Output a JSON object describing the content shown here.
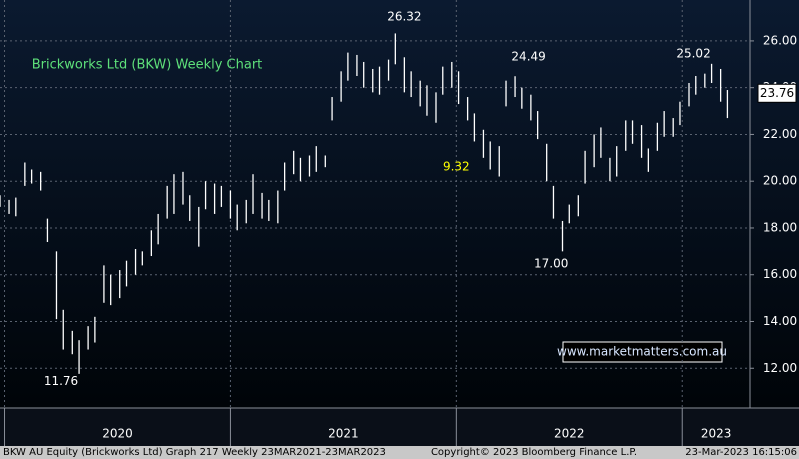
{
  "chart_data": {
    "type": "range_bar",
    "title": "Brickworks Ltd (BKW) Weekly Chart",
    "color": "#ffffff",
    "x": [
      2019.98,
      2020.02,
      2020.05,
      2020.09,
      2020.12,
      2020.16,
      2020.19,
      2020.23,
      2020.26,
      2020.3,
      2020.33,
      2020.37,
      2020.4,
      2020.44,
      2020.47,
      2020.51,
      2020.54,
      2020.58,
      2020.61,
      2020.65,
      2020.68,
      2020.72,
      2020.75,
      2020.79,
      2020.82,
      2020.86,
      2020.89,
      2020.93,
      2020.96,
      2021.0,
      2021.03,
      2021.07,
      2021.1,
      2021.14,
      2021.17,
      2021.21,
      2021.24,
      2021.28,
      2021.31,
      2021.35,
      2021.38,
      2021.42,
      2021.45,
      2021.49,
      2021.52,
      2021.56,
      2021.59,
      2021.63,
      2021.66,
      2021.7,
      2021.73,
      2021.77,
      2021.8,
      2021.84,
      2021.87,
      2021.91,
      2021.94,
      2021.98,
      2022.01,
      2022.05,
      2022.08,
      2022.12,
      2022.15,
      2022.19,
      2022.22,
      2022.26,
      2022.29,
      2022.33,
      2022.36,
      2022.4,
      2022.43,
      2022.47,
      2022.5,
      2022.54,
      2022.57,
      2022.61,
      2022.64,
      2022.68,
      2022.71,
      2022.75,
      2022.78,
      2022.82,
      2022.85,
      2022.89,
      2022.92,
      2022.96,
      2022.99,
      2023.03,
      2023.06,
      2023.1,
      2023.13,
      2023.17,
      2023.2
    ],
    "low": [
      18.9,
      18.6,
      18.5,
      19.8,
      19.9,
      19.6,
      17.4,
      14.1,
      12.8,
      12.6,
      11.76,
      12.8,
      13.1,
      14.8,
      14.7,
      15.0,
      15.5,
      16.0,
      16.4,
      16.8,
      17.3,
      18.4,
      18.6,
      19.0,
      18.3,
      17.2,
      18.8,
      18.6,
      18.9,
      18.4,
      17.9,
      18.2,
      18.6,
      18.4,
      18.3,
      18.2,
      19.6,
      20.3,
      20.0,
      20.2,
      20.4,
      20.6,
      22.6,
      23.4,
      24.3,
      24.5,
      24.0,
      23.8,
      23.7,
      24.3,
      25.0,
      23.8,
      23.6,
      23.2,
      22.8,
      22.5,
      23.7,
      24.0,
      23.3,
      22.6,
      21.7,
      21.0,
      20.5,
      20.2,
      23.2,
      23.6,
      23.1,
      22.6,
      21.8,
      20.0,
      18.4,
      17.0,
      18.2,
      18.5,
      19.9,
      20.6,
      21.0,
      20.0,
      20.2,
      21.3,
      21.6,
      21.0,
      20.4,
      21.3,
      21.9,
      21.9,
      22.4,
      23.2,
      23.7,
      24.0,
      24.2,
      23.4,
      22.7
    ],
    "high": [
      19.4,
      19.2,
      19.3,
      20.8,
      20.5,
      20.4,
      18.4,
      17.0,
      14.5,
      13.6,
      13.2,
      13.8,
      14.2,
      16.4,
      16.0,
      16.2,
      16.6,
      17.1,
      17.0,
      17.9,
      18.6,
      19.8,
      20.3,
      20.4,
      19.4,
      18.9,
      20.0,
      19.9,
      19.8,
      19.6,
      19.0,
      19.2,
      20.3,
      19.5,
      19.2,
      19.6,
      20.8,
      21.3,
      21.0,
      21.1,
      21.5,
      21.1,
      23.6,
      24.7,
      25.5,
      25.4,
      25.1,
      24.8,
      24.9,
      25.2,
      26.32,
      25.3,
      24.7,
      24.3,
      24.1,
      23.8,
      24.9,
      25.1,
      24.7,
      23.6,
      22.9,
      22.2,
      21.7,
      21.5,
      24.3,
      24.49,
      24.0,
      23.7,
      23.0,
      21.6,
      19.8,
      18.3,
      19.0,
      19.4,
      21.3,
      22.0,
      22.3,
      21.0,
      21.5,
      22.6,
      22.6,
      22.4,
      21.4,
      22.5,
      23.0,
      22.7,
      23.4,
      24.2,
      24.5,
      24.6,
      25.02,
      24.8,
      23.9
    ],
    "xlim": [
      2019.98,
      2023.3
    ],
    "xticks": [
      2020,
      2021,
      2022,
      2023
    ],
    "ylim": [
      10.3,
      27.75
    ],
    "yticks": [
      {
        "value": 12,
        "label": "12.00"
      },
      {
        "value": 14,
        "label": "14.00"
      },
      {
        "value": 16,
        "label": "16.00"
      },
      {
        "value": 18,
        "label": "18.00"
      },
      {
        "value": 20,
        "label": "20.00"
      },
      {
        "value": 22,
        "label": "22.00"
      },
      {
        "value": 24,
        "label": "24.00"
      },
      {
        "value": 26,
        "label": "26.00"
      }
    ],
    "grid": true,
    "last_price": 23.76,
    "annotations": [
      {
        "text": "26.32",
        "x": 2021.77,
        "y": 27.03,
        "color": "#ffffff"
      },
      {
        "text": "24.49",
        "x": 2022.32,
        "y": 25.31,
        "color": "#ffffff"
      },
      {
        "text": "25.02",
        "x": 2023.05,
        "y": 25.44,
        "color": "#ffffff"
      },
      {
        "text": "17.00",
        "x": 2022.42,
        "y": 16.45,
        "color": "#ffffff"
      },
      {
        "text": "11.76",
        "x": 2020.25,
        "y": 11.44,
        "color": "#ffffff"
      },
      {
        "text": "9.32",
        "x": 2022.0,
        "y": 20.6,
        "color": "#ffff00"
      }
    ],
    "watermark": "www.marketmatters.com.au"
  },
  "footer": [
    "BKW AU Equity (Brickworks Ltd) Graph 217  Weekly 23MAR2021-23MAR2023",
    "Copyright© 2023 Bloomberg Finance L.P.",
    "23-Mar-2023 16:15:06"
  ]
}
